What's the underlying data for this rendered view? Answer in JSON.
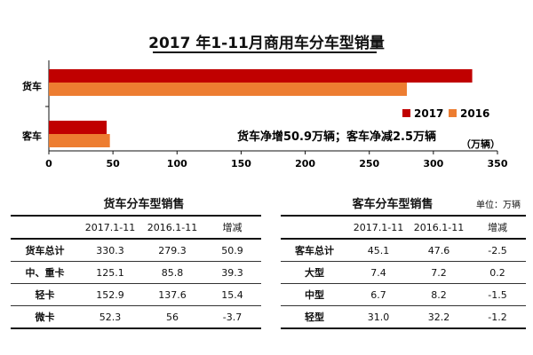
{
  "chart_data": {
    "type": "bar",
    "orientation": "horizontal",
    "title": "2017 年1-11月商用车分车型销量",
    "categories": [
      "货车",
      "客车"
    ],
    "series": [
      {
        "name": "2017",
        "color": "#c00000",
        "values": [
          330.3,
          45.1
        ]
      },
      {
        "name": "2016",
        "color": "#ed7d31",
        "values": [
          279.3,
          47.6
        ]
      }
    ],
    "xlim": [
      0,
      350
    ],
    "xticks": [
      0,
      50,
      100,
      150,
      200,
      250,
      300,
      350
    ],
    "unit": "（万辆）",
    "legend_position": "right",
    "annotation": "货车净增50.9万辆；客车净减2.5万辆",
    "grid": false
  },
  "truck_table": {
    "title": "货车分车型销售",
    "headers": [
      "",
      "2017.1-11",
      "2016.1-11",
      "增减"
    ],
    "rows": [
      [
        "货车总计",
        "330.3",
        "279.3",
        "50.9"
      ],
      [
        "中、重卡",
        "125.1",
        "85.8",
        "39.3"
      ],
      [
        "轻卡",
        "152.9",
        "137.6",
        "15.4"
      ],
      [
        "微卡",
        "52.3",
        "56",
        "-3.7"
      ]
    ]
  },
  "bus_table": {
    "title": "客车分车型销售",
    "unit_note": "单位：万辆",
    "headers": [
      "",
      "2017.1-11",
      "2016.1-11",
      "增减"
    ],
    "rows": [
      [
        "客车总计",
        "45.1",
        "47.6",
        "-2.5"
      ],
      [
        "大型",
        "7.4",
        "7.2",
        "0.2"
      ],
      [
        "中型",
        "6.7",
        "8.2",
        "-1.5"
      ],
      [
        "轻型",
        "31.0",
        "32.2",
        "-1.2"
      ]
    ]
  }
}
